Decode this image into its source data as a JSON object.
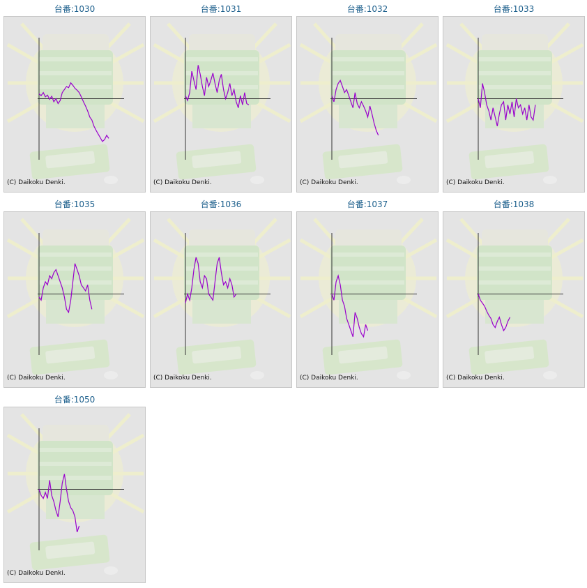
{
  "copyright": "(C) Daikoku Denki.",
  "colors": {
    "line": "#9900cc",
    "title": "#1c5f8c",
    "panel_bg": "#e4e4e4",
    "axis": "#333333"
  },
  "chart_data": [
    {
      "type": "line",
      "title": "台番:1030",
      "ylim": [
        -100,
        100
      ],
      "y": [
        8,
        5,
        10,
        3,
        6,
        -1,
        4,
        -5,
        0,
        -8,
        -3,
        10,
        15,
        20,
        18,
        26,
        22,
        17,
        14,
        10,
        3,
        -5,
        -12,
        -20,
        -30,
        -35,
        -45,
        -52,
        -58,
        -64,
        -70,
        -67,
        -60,
        -65
      ]
    },
    {
      "type": "line",
      "title": "台番:1031",
      "ylim": [
        -100,
        100
      ],
      "y": [
        5,
        -3,
        10,
        45,
        30,
        15,
        55,
        40,
        20,
        5,
        35,
        20,
        30,
        42,
        25,
        10,
        30,
        40,
        15,
        0,
        10,
        25,
        5,
        15,
        -5,
        -15,
        5,
        -10,
        10,
        -8,
        -10
      ]
    },
    {
      "type": "line",
      "title": "台番:1032",
      "ylim": [
        -100,
        100
      ],
      "y": [
        5,
        -5,
        15,
        25,
        30,
        20,
        10,
        15,
        5,
        -5,
        -15,
        10,
        -8,
        -15,
        -5,
        -12,
        -20,
        -30,
        -12,
        -25,
        -40,
        -52,
        -60
      ]
    },
    {
      "type": "line",
      "title": "台番:1033",
      "ylim": [
        -100,
        100
      ],
      "y": [
        0,
        -15,
        25,
        10,
        -10,
        -20,
        -35,
        -15,
        -30,
        -45,
        -25,
        -10,
        -5,
        -35,
        -10,
        -25,
        -5,
        -30,
        0,
        -15,
        -10,
        -25,
        -15,
        -35,
        -10,
        -30,
        -35,
        -10
      ]
    },
    {
      "type": "line",
      "title": "台番:1035",
      "ylim": [
        -100,
        100
      ],
      "y": [
        -5,
        -10,
        10,
        20,
        15,
        30,
        25,
        35,
        40,
        30,
        20,
        10,
        -5,
        -25,
        -30,
        -10,
        20,
        50,
        40,
        30,
        15,
        10,
        5,
        15,
        -10,
        -25
      ]
    },
    {
      "type": "line",
      "title": "台番:1036",
      "ylim": [
        -100,
        100
      ],
      "y": [
        -15,
        0,
        -10,
        10,
        40,
        60,
        50,
        20,
        10,
        30,
        25,
        0,
        -5,
        -10,
        20,
        50,
        60,
        35,
        15,
        20,
        10,
        25,
        15,
        -5,
        0
      ]
    },
    {
      "type": "line",
      "title": "台番:1037",
      "ylim": [
        -100,
        100
      ],
      "y": [
        0,
        -10,
        20,
        30,
        15,
        -10,
        -20,
        -40,
        -50,
        -60,
        -70,
        -30,
        -40,
        -55,
        -65,
        -70,
        -50,
        -60
      ]
    },
    {
      "type": "line",
      "title": "台番:1038",
      "ylim": [
        -100,
        100
      ],
      "y": [
        0,
        -10,
        -15,
        -20,
        -28,
        -35,
        -40,
        -50,
        -55,
        -45,
        -38,
        -50,
        -60,
        -55,
        -45,
        -38
      ]
    },
    {
      "type": "line",
      "title": "台番:1050",
      "ylim": [
        -100,
        100
      ],
      "y": [
        0,
        -10,
        -15,
        -5,
        -15,
        15,
        -10,
        -20,
        -35,
        -45,
        -20,
        10,
        25,
        0,
        -20,
        -30,
        -35,
        -45,
        -70,
        -60
      ]
    }
  ]
}
